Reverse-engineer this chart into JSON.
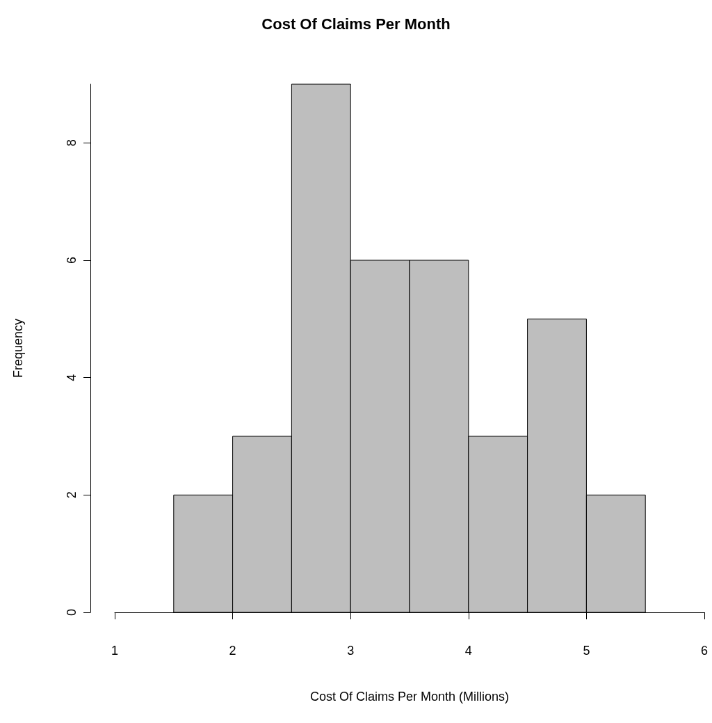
{
  "chart_data": {
    "type": "histogram",
    "title": "Cost Of Claims Per Month",
    "xlabel": "Cost Of Claims Per Month (Millions)",
    "ylabel": "Frequency",
    "bins": [
      1.5,
      2,
      2.5,
      3,
      3.5,
      4,
      4.5,
      5,
      5.5
    ],
    "values": [
      2,
      3,
      9,
      6,
      6,
      3,
      5,
      2
    ],
    "color": "#bebebe",
    "xlim": [
      1,
      6
    ],
    "xticks": [
      1,
      2,
      3,
      4,
      5,
      6
    ],
    "ylim": [
      0,
      9
    ],
    "yticks": [
      0,
      2,
      4,
      6,
      8
    ]
  }
}
